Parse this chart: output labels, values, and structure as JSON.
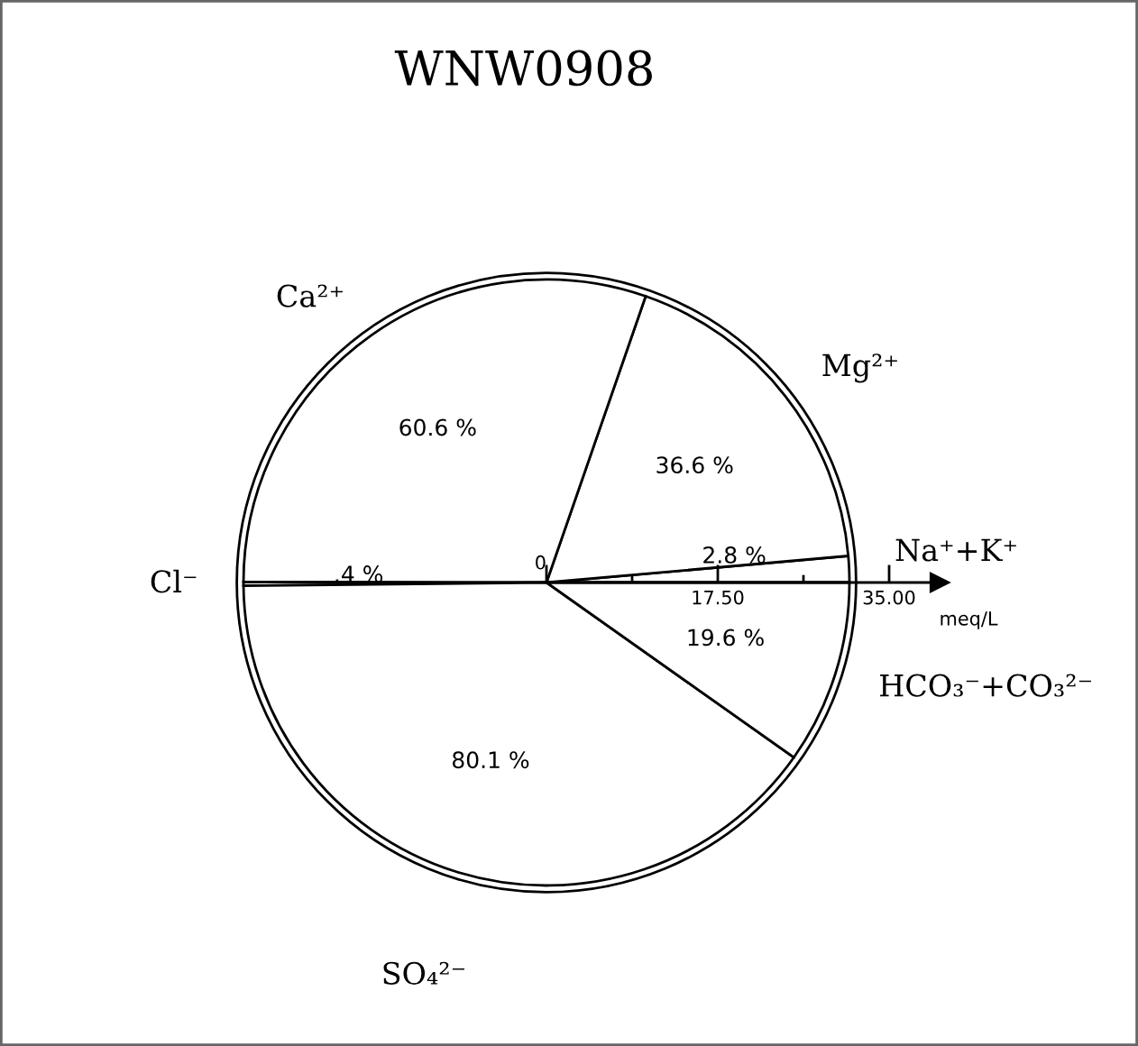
{
  "chart_data": {
    "type": "pie",
    "title": "WNW0908",
    "categories": [
      "Na⁺+K⁺",
      "Mg²⁺",
      "Ca²⁺",
      "Cl⁻",
      "SO₄²⁻",
      "HCO₃⁻+CO₃²⁻"
    ],
    "values": [
      2.8,
      36.6,
      60.6,
      0.4,
      80.1,
      19.6
    ],
    "colors": [
      "#ffffff",
      "#ffffff",
      "#ffffff",
      "#ffffff",
      "#ffffff",
      "#ffffff"
    ],
    "value_labels": [
      "2.8 %",
      "36.6 %",
      "60.6 %",
      ".4 %",
      "80.1 %",
      "19.6 %"
    ],
    "xlabel": "meq/L",
    "annotations": [
      "0",
      "17.50",
      "35.00"
    ]
  }
}
